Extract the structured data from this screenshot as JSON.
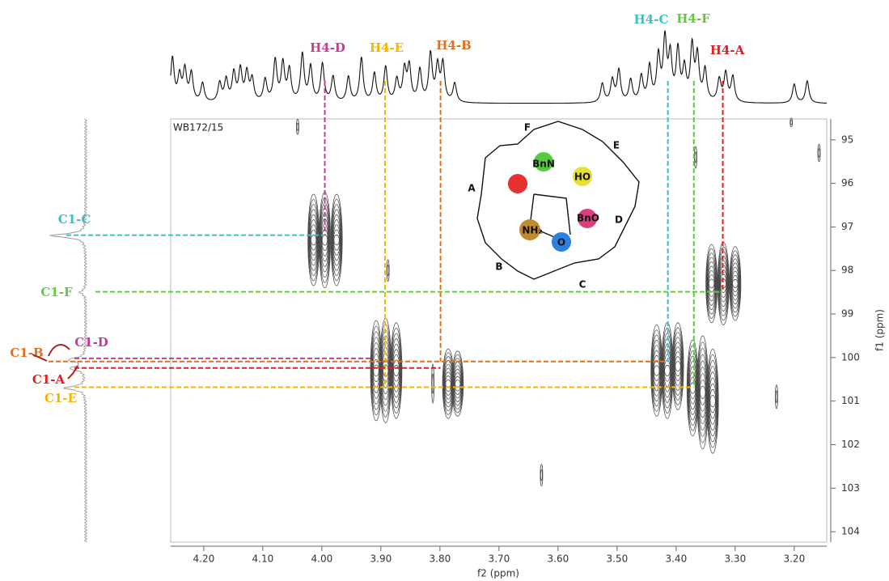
{
  "chart_data": {
    "type": "contour",
    "annotation": "WB172/15",
    "xlabel": "f2 (ppm)",
    "ylabel": "f1 (ppm)",
    "xlim": [
      4.256,
      3.145
    ],
    "ylim": [
      94.52,
      104.24
    ],
    "xticks": [
      {
        "value": 4.2,
        "label": "4.20"
      },
      {
        "value": 4.1,
        "label": "4.10"
      },
      {
        "value": 4.0,
        "label": "4.00"
      },
      {
        "value": 3.9,
        "label": "3.90"
      },
      {
        "value": 3.8,
        "label": "3.80"
      },
      {
        "value": 3.7,
        "label": "3.70"
      },
      {
        "value": 3.6,
        "label": "3.60"
      },
      {
        "value": 3.5,
        "label": "3.50"
      },
      {
        "value": 3.4,
        "label": "3.40"
      },
      {
        "value": 3.3,
        "label": "3.30"
      },
      {
        "value": 3.2,
        "label": "3.20"
      }
    ],
    "yticks": [
      95,
      96,
      97,
      98,
      99,
      100,
      101,
      102,
      103,
      104
    ],
    "color": "#4a4a4a",
    "peaks": {
      "x": [
        4.014,
        3.995,
        3.975,
        3.908,
        3.892,
        3.874,
        3.812,
        3.786,
        3.77,
        3.433,
        3.415,
        3.397,
        3.372,
        3.355,
        3.338,
        3.34,
        3.32,
        3.3,
        4.041,
        3.888,
        3.628,
        3.23,
        3.205,
        3.158,
        3.367
      ],
      "y": [
        97.3,
        97.3,
        97.3,
        100.3,
        100.3,
        100.3,
        100.6,
        100.6,
        100.6,
        100.3,
        100.3,
        100.2,
        100.7,
        100.8,
        101.0,
        98.3,
        98.3,
        98.3,
        94.7,
        98.0,
        102.7,
        100.9,
        94.6,
        95.3,
        95.4
      ],
      "spread": [
        2.1,
        2.2,
        2.1,
        2.3,
        2.4,
        2.2,
        0.9,
        1.6,
        1.5,
        2.1,
        2.2,
        2.0,
        2.2,
        2.6,
        2.4,
        1.8,
        1.9,
        1.7,
        0.35,
        0.5,
        0.5,
        0.55,
        0.2,
        0.4,
        0.5
      ]
    },
    "projection_f2": {
      "x": [
        4.253,
        4.241,
        4.232,
        4.221,
        4.202,
        4.173,
        4.162,
        4.149,
        4.138,
        4.127,
        4.118,
        4.096,
        4.079,
        4.066,
        4.055,
        4.033,
        4.019,
        3.999,
        3.981,
        3.955,
        3.933,
        3.911,
        3.892,
        3.873,
        3.86,
        3.852,
        3.834,
        3.816,
        3.804,
        3.795,
        3.775,
        3.525,
        3.508,
        3.497,
        3.477,
        3.459,
        3.445,
        3.43,
        3.419,
        3.41,
        3.397,
        3.386,
        3.373,
        3.364,
        3.351,
        3.327,
        3.316,
        3.304,
        3.2,
        3.178
      ],
      "height": [
        0.7,
        0.4,
        0.5,
        0.45,
        0.3,
        0.3,
        0.35,
        0.45,
        0.5,
        0.45,
        0.35,
        0.35,
        0.65,
        0.6,
        0.5,
        0.75,
        0.55,
        0.6,
        0.4,
        0.4,
        0.7,
        0.45,
        0.55,
        0.35,
        0.5,
        0.55,
        0.5,
        0.75,
        0.55,
        0.6,
        0.3,
        0.3,
        0.35,
        0.5,
        0.35,
        0.4,
        0.55,
        0.7,
        0.95,
        0.7,
        0.8,
        0.5,
        0.85,
        0.7,
        0.5,
        0.35,
        0.45,
        0.4,
        0.3,
        0.35
      ]
    },
    "projection_f1": {
      "y": [
        97.2,
        98.5,
        100.05,
        100.25,
        100.7
      ],
      "height": [
        0.9,
        0.15,
        0.45,
        0.4,
        0.55
      ]
    },
    "h4_labels": [
      {
        "label": "H4-D",
        "color": "#c0408f",
        "x": 3.995,
        "y_end": 97.2
      },
      {
        "label": "H4-E",
        "color": "#f5b400",
        "x": 3.893,
        "y_end": 100.68
      },
      {
        "label": "H4-B",
        "color": "#e07020",
        "x": 3.799,
        "y_end": 100.09
      },
      {
        "label": "H4-C",
        "color": "#3cc0c8",
        "x": 3.414,
        "y_end": 100.09
      },
      {
        "label": "H4-F",
        "color": "#5ccc3c",
        "x": 3.37,
        "y_end": 100.68
      },
      {
        "label": "H4-A",
        "color": "#e02020",
        "x": 3.321,
        "y_end": 98.49
      }
    ],
    "c1_labels": [
      {
        "label": "C1-C",
        "color": "#3cc0c8",
        "y": 97.19,
        "x_end": 3.995
      },
      {
        "label": "C1-F",
        "color": "#5ccc3c",
        "y": 98.49,
        "x_end": 3.321
      },
      {
        "label": "C1-B",
        "color": "#e07020",
        "y": 100.09,
        "x_end": 3.414
      },
      {
        "label": "C1-D",
        "color": "#c0408f",
        "y": 100.02,
        "x_end": 3.914
      },
      {
        "label": "C1-A",
        "color": "#e02020",
        "y": 100.24,
        "x_end": 3.799
      },
      {
        "label": "C1-E",
        "color": "#f5b400",
        "y": 100.68,
        "x_end": 3.37
      }
    ],
    "structure": {
      "rings": [
        "F",
        "E",
        "A",
        "D",
        "B",
        "C"
      ],
      "groups": [
        "BnN",
        "HO",
        "BnO",
        "NH₂",
        "O"
      ]
    }
  }
}
